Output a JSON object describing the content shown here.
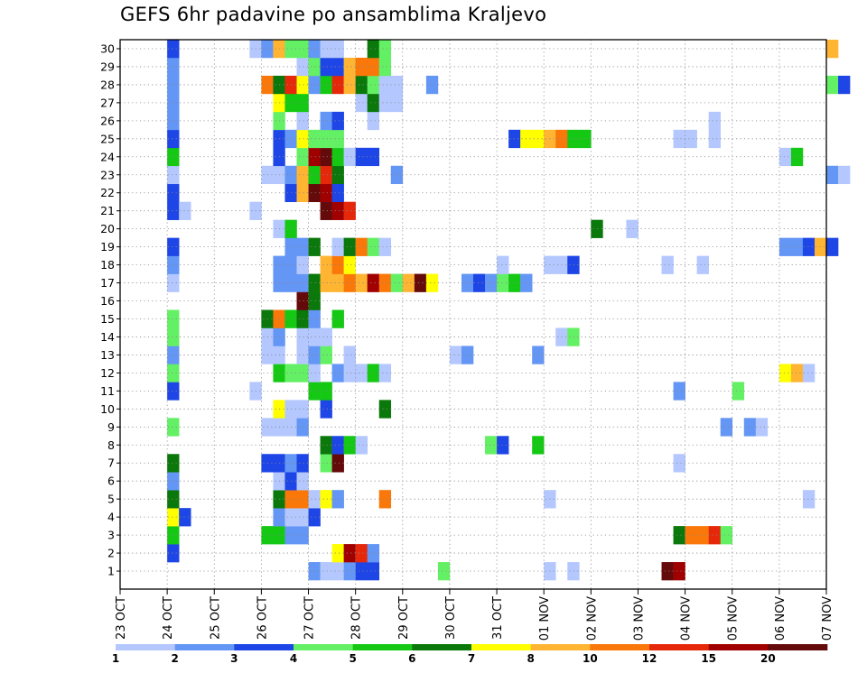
{
  "chart_data": {
    "type": "heatmap",
    "title": "GEFS 6hr padavine po ansamblima Kraljevo",
    "x_tick_labels": [
      "23 OCT",
      "24 OCT",
      "25 OCT",
      "26 OCT",
      "27 OCT",
      "28 OCT",
      "29 OCT",
      "30 OCT",
      "31 OCT",
      "01 NOV",
      "02 NOV",
      "03 NOV",
      "04 NOV",
      "05 NOV",
      "06 NOV",
      "07 NOV"
    ],
    "y_tick_labels": [
      "1",
      "2",
      "3",
      "4",
      "5",
      "6",
      "7",
      "8",
      "9",
      "10",
      "11",
      "12",
      "13",
      "14",
      "15",
      "16",
      "17",
      "18",
      "19",
      "20",
      "21",
      "22",
      "23",
      "24",
      "25",
      "26",
      "27",
      "28",
      "29",
      "30"
    ],
    "x_time_step_hours": 6,
    "grid": true,
    "legend_position": "bottom",
    "colorbar": {
      "labels": [
        "1",
        "2",
        "3",
        "4",
        "5",
        "6",
        "7",
        "8",
        "10",
        "12",
        "15",
        "20"
      ],
      "colors": [
        "#b4c8ff",
        "#6496f5",
        "#1e46e6",
        "#64f064",
        "#14c814",
        "#0a780a",
        "#ffff00",
        "#ffb432",
        "#fa780a",
        "#e6280a",
        "#a00000",
        "#640a0a"
      ]
    },
    "members": {
      "1": [
        [
          4,
          1
        ],
        [
          4.25,
          0
        ],
        [
          4.5,
          0
        ],
        [
          4.75,
          1
        ],
        [
          5,
          2
        ],
        [
          5.25,
          2
        ],
        [
          6.75,
          3
        ],
        [
          9,
          0
        ],
        [
          9.5,
          0
        ],
        [
          11.5,
          11
        ],
        [
          11.75,
          10
        ]
      ],
      "2": [
        [
          1,
          2
        ],
        [
          4.5,
          6
        ],
        [
          4.75,
          10
        ],
        [
          5,
          9
        ],
        [
          5.25,
          1
        ]
      ],
      "3": [
        [
          1,
          4
        ],
        [
          3,
          4
        ],
        [
          3.25,
          4
        ],
        [
          3.5,
          1
        ],
        [
          3.75,
          1
        ],
        [
          11.75,
          5
        ],
        [
          12,
          8
        ],
        [
          12.25,
          8
        ],
        [
          12.5,
          9
        ],
        [
          12.75,
          3
        ]
      ],
      "4": [
        [
          1,
          6
        ],
        [
          1.25,
          2
        ],
        [
          3.25,
          1
        ],
        [
          3.5,
          0
        ],
        [
          3.75,
          0
        ],
        [
          4,
          2
        ]
      ],
      "5": [
        [
          1,
          5
        ],
        [
          3.25,
          5
        ],
        [
          3.5,
          8
        ],
        [
          3.75,
          8
        ],
        [
          4,
          0
        ],
        [
          4.25,
          6
        ],
        [
          4.5,
          1
        ],
        [
          5.5,
          8
        ],
        [
          9,
          0
        ],
        [
          14.5,
          0
        ]
      ],
      "6": [
        [
          1,
          1
        ],
        [
          3.25,
          0
        ],
        [
          3.5,
          2
        ],
        [
          3.75,
          0
        ]
      ],
      "7": [
        [
          1,
          5
        ],
        [
          3,
          2
        ],
        [
          3.25,
          2
        ],
        [
          3.5,
          1
        ],
        [
          3.75,
          2
        ],
        [
          4.25,
          3
        ],
        [
          4.5,
          11
        ],
        [
          11.75,
          0
        ]
      ],
      "8": [
        [
          4.25,
          5
        ],
        [
          4.5,
          2
        ],
        [
          4.75,
          4
        ],
        [
          5,
          0
        ],
        [
          7.75,
          3
        ],
        [
          8,
          2
        ],
        [
          8.75,
          4
        ]
      ],
      "9": [
        [
          1,
          3
        ],
        [
          3,
          0
        ],
        [
          3.25,
          0
        ],
        [
          3.5,
          0
        ],
        [
          3.75,
          1
        ],
        [
          12.75,
          1
        ],
        [
          13.25,
          1
        ],
        [
          13.5,
          0
        ]
      ],
      "10": [
        [
          3.25,
          6
        ],
        [
          3.5,
          0
        ],
        [
          3.75,
          0
        ],
        [
          4.25,
          2
        ],
        [
          5.5,
          5
        ]
      ],
      "11": [
        [
          1,
          2
        ],
        [
          2.75,
          0
        ],
        [
          4,
          4
        ],
        [
          4.25,
          4
        ],
        [
          11.75,
          1
        ],
        [
          13,
          3
        ]
      ],
      "12": [
        [
          1,
          3
        ],
        [
          3.25,
          4
        ],
        [
          3.5,
          3
        ],
        [
          3.75,
          3
        ],
        [
          4,
          0
        ],
        [
          4.5,
          1
        ],
        [
          4.75,
          0
        ],
        [
          5,
          0
        ],
        [
          5.25,
          4
        ],
        [
          5.5,
          0
        ],
        [
          14,
          6
        ],
        [
          14.25,
          7
        ],
        [
          14.5,
          0
        ]
      ],
      "13": [
        [
          1,
          1
        ],
        [
          3,
          0
        ],
        [
          3.25,
          0
        ],
        [
          3.75,
          0
        ],
        [
          4,
          1
        ],
        [
          4.25,
          3
        ],
        [
          4.75,
          0
        ],
        [
          7,
          0
        ],
        [
          7.25,
          1
        ],
        [
          8.75,
          1
        ]
      ],
      "14": [
        [
          1,
          3
        ],
        [
          3,
          0
        ],
        [
          3.25,
          1
        ],
        [
          3.75,
          0
        ],
        [
          4,
          0
        ],
        [
          4.25,
          0
        ],
        [
          9.25,
          0
        ],
        [
          9.5,
          3
        ]
      ],
      "15": [
        [
          1,
          3
        ],
        [
          3,
          5
        ],
        [
          3.25,
          8
        ],
        [
          3.5,
          4
        ],
        [
          3.75,
          5
        ],
        [
          4,
          1
        ],
        [
          4.5,
          4
        ]
      ],
      "16": [
        [
          3.75,
          11
        ],
        [
          4,
          5
        ]
      ],
      "17": [
        [
          1,
          0
        ],
        [
          3.25,
          1
        ],
        [
          3.5,
          1
        ],
        [
          3.75,
          1
        ],
        [
          4,
          5
        ],
        [
          4.25,
          7
        ],
        [
          4.5,
          7
        ],
        [
          4.75,
          8
        ],
        [
          5,
          7
        ],
        [
          5.25,
          10
        ],
        [
          5.5,
          8
        ],
        [
          5.75,
          3
        ],
        [
          6,
          7
        ],
        [
          6.25,
          11
        ],
        [
          6.5,
          6
        ],
        [
          7.25,
          1
        ],
        [
          7.5,
          2
        ],
        [
          7.75,
          1
        ],
        [
          8,
          3
        ],
        [
          8.25,
          4
        ],
        [
          8.5,
          1
        ]
      ],
      "18": [
        [
          1,
          1
        ],
        [
          3.25,
          1
        ],
        [
          3.5,
          1
        ],
        [
          3.75,
          0
        ],
        [
          4.25,
          7
        ],
        [
          4.5,
          8
        ],
        [
          4.75,
          6
        ],
        [
          8,
          0
        ],
        [
          9,
          0
        ],
        [
          9.25,
          0
        ],
        [
          9.5,
          2
        ],
        [
          11.5,
          0
        ],
        [
          12.25,
          0
        ]
      ],
      "19": [
        [
          1,
          2
        ],
        [
          3.5,
          1
        ],
        [
          3.75,
          1
        ],
        [
          4,
          5
        ],
        [
          4.5,
          0
        ],
        [
          4.75,
          5
        ],
        [
          5,
          8
        ],
        [
          5.25,
          3
        ],
        [
          5.5,
          0
        ],
        [
          14,
          1
        ],
        [
          14.25,
          1
        ],
        [
          14.5,
          2
        ],
        [
          14.75,
          7
        ],
        [
          15,
          2
        ]
      ],
      "20": [
        [
          3.25,
          0
        ],
        [
          3.5,
          4
        ],
        [
          10,
          5
        ],
        [
          10.75,
          0
        ]
      ],
      "21": [
        [
          1,
          2
        ],
        [
          1.25,
          0
        ],
        [
          2.75,
          0
        ],
        [
          4.25,
          11
        ],
        [
          4.5,
          10
        ],
        [
          4.75,
          9
        ]
      ],
      "22": [
        [
          1,
          2
        ],
        [
          3.5,
          2
        ],
        [
          3.75,
          7
        ],
        [
          4,
          11
        ],
        [
          4.25,
          10
        ],
        [
          4.5,
          2
        ]
      ],
      "23": [
        [
          1,
          0
        ],
        [
          3,
          0
        ],
        [
          3.25,
          0
        ],
        [
          3.5,
          1
        ],
        [
          3.75,
          7
        ],
        [
          4,
          4
        ],
        [
          4.25,
          9
        ],
        [
          4.5,
          5
        ],
        [
          5.75,
          1
        ],
        [
          15,
          1
        ],
        [
          15.25,
          0
        ]
      ],
      "24": [
        [
          1,
          4
        ],
        [
          3.25,
          2
        ],
        [
          3.75,
          3
        ],
        [
          4,
          10
        ],
        [
          4.25,
          11
        ],
        [
          4.5,
          4
        ],
        [
          4.75,
          0
        ],
        [
          5,
          2
        ],
        [
          5.25,
          2
        ],
        [
          14,
          0
        ],
        [
          14.25,
          4
        ]
      ],
      "25": [
        [
          1,
          2
        ],
        [
          3.25,
          2
        ],
        [
          3.5,
          1
        ],
        [
          3.75,
          6
        ],
        [
          4,
          3
        ],
        [
          4.25,
          3
        ],
        [
          4.5,
          3
        ],
        [
          8.25,
          2
        ],
        [
          8.5,
          6
        ],
        [
          8.75,
          6
        ],
        [
          9,
          7
        ],
        [
          9.25,
          8
        ],
        [
          9.5,
          4
        ],
        [
          9.75,
          4
        ],
        [
          11.75,
          0
        ],
        [
          12,
          0
        ],
        [
          12.5,
          0
        ]
      ],
      "26": [
        [
          1,
          1
        ],
        [
          3.25,
          3
        ],
        [
          3.75,
          0
        ],
        [
          4.25,
          1
        ],
        [
          4.5,
          2
        ],
        [
          5.25,
          0
        ],
        [
          12.5,
          0
        ]
      ],
      "27": [
        [
          1,
          1
        ],
        [
          3.25,
          6
        ],
        [
          3.5,
          4
        ],
        [
          3.75,
          4
        ],
        [
          5,
          0
        ],
        [
          5.25,
          5
        ],
        [
          5.5,
          0
        ],
        [
          5.75,
          0
        ]
      ],
      "28": [
        [
          1,
          1
        ],
        [
          3,
          8
        ],
        [
          3.25,
          5
        ],
        [
          3.5,
          9
        ],
        [
          3.75,
          6
        ],
        [
          4,
          1
        ],
        [
          4.25,
          4
        ],
        [
          4.5,
          9
        ],
        [
          4.75,
          7
        ],
        [
          5,
          5
        ],
        [
          5.25,
          3
        ],
        [
          5.5,
          0
        ],
        [
          5.75,
          0
        ],
        [
          6.5,
          1
        ],
        [
          15,
          3
        ],
        [
          15.25,
          2
        ]
      ],
      "29": [
        [
          1,
          1
        ],
        [
          3.75,
          0
        ],
        [
          4,
          3
        ],
        [
          4.25,
          2
        ],
        [
          4.5,
          2
        ],
        [
          4.75,
          7
        ],
        [
          5,
          8
        ],
        [
          5.25,
          8
        ],
        [
          5.5,
          3
        ]
      ],
      "30": [
        [
          1,
          2
        ],
        [
          2.75,
          0
        ],
        [
          3,
          1
        ],
        [
          3.25,
          7
        ],
        [
          3.5,
          3
        ],
        [
          3.75,
          3
        ],
        [
          4,
          1
        ],
        [
          4.25,
          0
        ],
        [
          4.5,
          0
        ],
        [
          5.25,
          5
        ],
        [
          5.5,
          3
        ],
        [
          15,
          7
        ]
      ]
    }
  }
}
